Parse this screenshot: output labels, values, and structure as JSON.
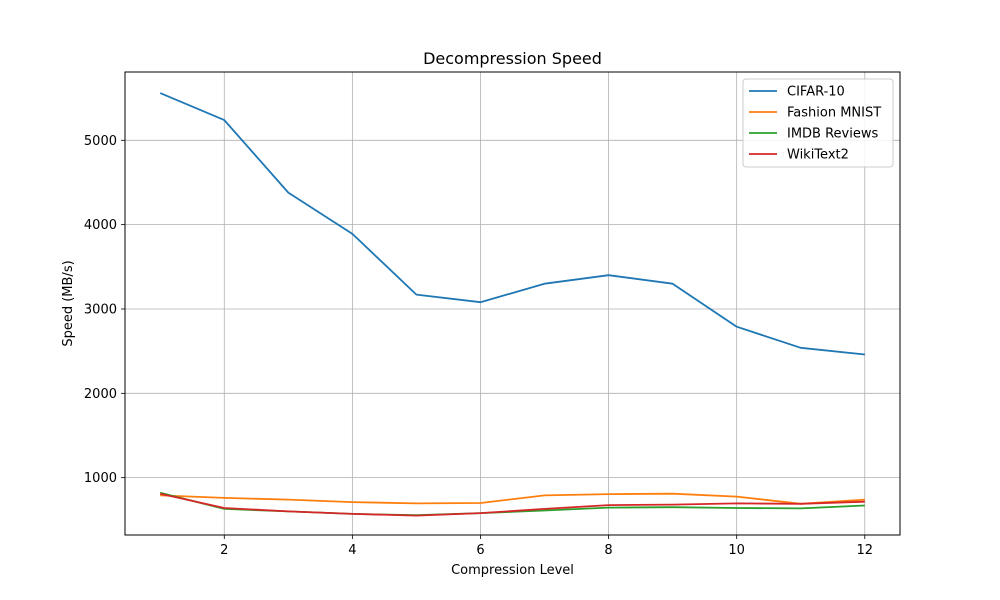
{
  "chart_data": {
    "type": "line",
    "title": "Decompression Speed",
    "xlabel": "Compression Level",
    "ylabel": "Speed (MB/s)",
    "xlim": [
      0.45,
      12.55
    ],
    "ylim": [
      320,
      5810
    ],
    "x_ticks": [
      2,
      4,
      6,
      8,
      10,
      12
    ],
    "y_ticks": [
      1000,
      2000,
      3000,
      4000,
      5000
    ],
    "grid": true,
    "legend_position": "top-right",
    "x": [
      1,
      2,
      3,
      4,
      5,
      6,
      7,
      8,
      9,
      10,
      11,
      12
    ],
    "series": [
      {
        "name": "CIFAR-10",
        "color": "#1f77b4",
        "values": [
          5560,
          5240,
          4380,
          3890,
          3170,
          3080,
          3300,
          3400,
          3300,
          2790,
          2540,
          2460
        ]
      },
      {
        "name": "Fashion MNIST",
        "color": "#ff7f0e",
        "values": [
          790,
          760,
          740,
          710,
          695,
          700,
          790,
          805,
          810,
          775,
          690,
          740
        ]
      },
      {
        "name": "IMDB Reviews",
        "color": "#2ca02c",
        "values": [
          820,
          630,
          600,
          570,
          555,
          580,
          610,
          645,
          650,
          640,
          635,
          670
        ]
      },
      {
        "name": "WikiText2",
        "color": "#d62728",
        "values": [
          810,
          640,
          600,
          570,
          550,
          580,
          630,
          675,
          680,
          695,
          690,
          715
        ]
      }
    ]
  }
}
